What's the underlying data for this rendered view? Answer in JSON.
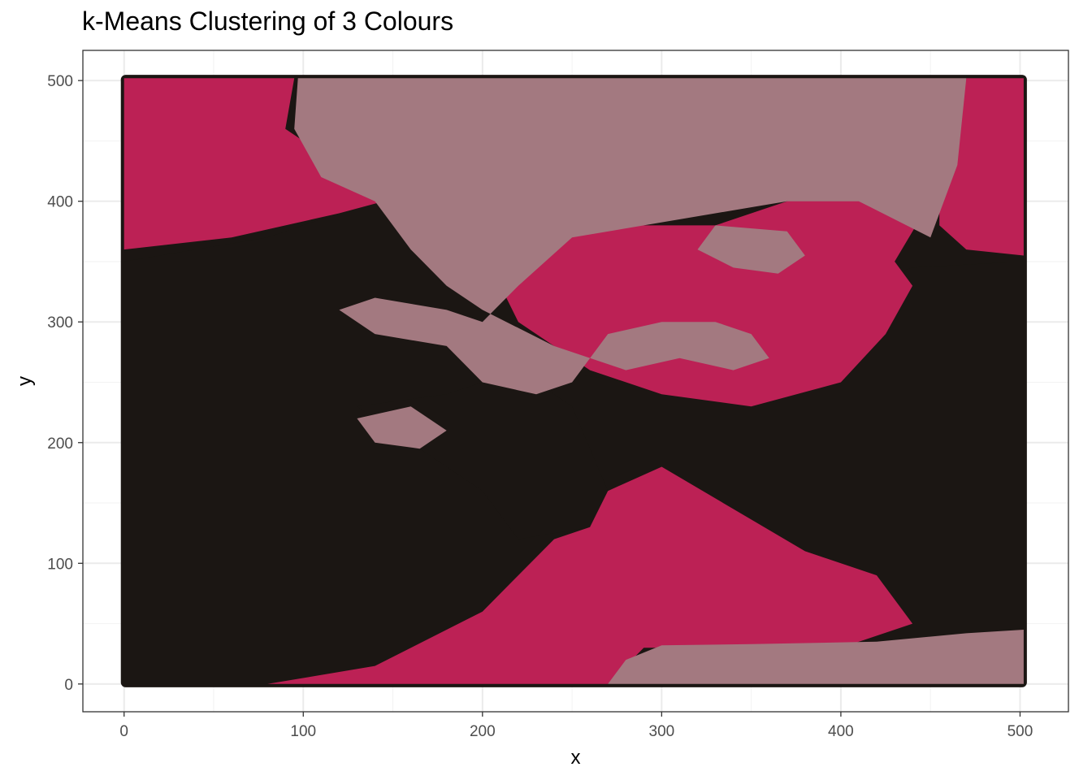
{
  "chart_data": {
    "type": "scatter",
    "title": "k-Means Clustering of 3 Colours",
    "xlabel": "x",
    "ylabel": "y",
    "xlim": [
      -23,
      527
    ],
    "ylim": [
      -23,
      525
    ],
    "x_ticks": [
      0,
      100,
      200,
      300,
      400,
      500
    ],
    "y_ticks": [
      0,
      100,
      200,
      300,
      400,
      500
    ],
    "grid": true,
    "legend": "none",
    "colors": {
      "cluster_dark": "#1b1613",
      "cluster_magenta": "#bc2155",
      "cluster_mauve": "#a37980"
    },
    "data_extent": {
      "x": [
        0,
        502
      ],
      "y": [
        0,
        502
      ]
    },
    "clusters": [
      {
        "color": "#1b1613",
        "regions": [
          [
            [
              0,
              0
            ],
            [
              80,
              0
            ],
            [
              140,
              15
            ],
            [
              260,
              55
            ],
            [
              300,
              40
            ],
            [
              420,
              30
            ],
            [
              502,
              40
            ],
            [
              502,
              350
            ],
            [
              440,
              345
            ],
            [
              390,
              320
            ],
            [
              360,
              280
            ],
            [
              320,
              260
            ],
            [
              280,
              250
            ],
            [
              240,
              260
            ],
            [
              220,
              300
            ],
            [
              200,
              360
            ],
            [
              190,
              410
            ],
            [
              160,
              410
            ],
            [
              120,
              390
            ],
            [
              80,
              370
            ],
            [
              40,
              360
            ],
            [
              0,
              350
            ]
          ],
          [
            [
              130,
              230
            ],
            [
              180,
              240
            ],
            [
              220,
              260
            ],
            [
              250,
              230
            ],
            [
              270,
              160
            ],
            [
              260,
              130
            ],
            [
              220,
              120
            ],
            [
              200,
              160
            ],
            [
              170,
              190
            ]
          ]
        ]
      },
      {
        "color": "#bc2155",
        "regions": [
          [
            [
              0,
              502
            ],
            [
              95,
              502
            ],
            [
              90,
              460
            ],
            [
              130,
              420
            ],
            [
              170,
              410
            ],
            [
              120,
              390
            ],
            [
              60,
              370
            ],
            [
              0,
              360
            ]
          ],
          [
            [
              470,
              502
            ],
            [
              502,
              502
            ],
            [
              502,
              355
            ],
            [
              470,
              360
            ],
            [
              455,
              380
            ],
            [
              455,
              420
            ]
          ],
          [
            [
              80,
              0
            ],
            [
              270,
              0
            ],
            [
              290,
              30
            ],
            [
              400,
              30
            ],
            [
              440,
              50
            ],
            [
              420,
              90
            ],
            [
              380,
              110
            ],
            [
              300,
              180
            ],
            [
              270,
              160
            ],
            [
              260,
              130
            ],
            [
              240,
              120
            ],
            [
              220,
              90
            ],
            [
              200,
              60
            ],
            [
              140,
              15
            ]
          ],
          [
            [
              230,
              400
            ],
            [
              290,
              380
            ],
            [
              330,
              380
            ],
            [
              370,
              400
            ],
            [
              410,
              420
            ],
            [
              450,
              400
            ],
            [
              430,
              350
            ],
            [
              440,
              330
            ],
            [
              425,
              290
            ],
            [
              400,
              250
            ],
            [
              350,
              230
            ],
            [
              300,
              240
            ],
            [
              260,
              260
            ],
            [
              220,
              300
            ],
            [
              200,
              360
            ]
          ]
        ]
      },
      {
        "color": "#a37980",
        "regions": [
          [
            [
              97,
              502
            ],
            [
              470,
              502
            ],
            [
              465,
              430
            ],
            [
              450,
              370
            ],
            [
              410,
              400
            ],
            [
              370,
              400
            ],
            [
              330,
              390
            ],
            [
              290,
              380
            ],
            [
              250,
              370
            ],
            [
              220,
              330
            ],
            [
              200,
              300
            ],
            [
              180,
              310
            ],
            [
              140,
              320
            ],
            [
              120,
              310
            ],
            [
              140,
              290
            ],
            [
              180,
              280
            ],
            [
              200,
              250
            ],
            [
              230,
              240
            ],
            [
              250,
              250
            ],
            [
              270,
              290
            ],
            [
              300,
              300
            ],
            [
              330,
              300
            ],
            [
              350,
              290
            ],
            [
              360,
              270
            ],
            [
              340,
              260
            ],
            [
              310,
              270
            ],
            [
              280,
              260
            ],
            [
              240,
              280
            ],
            [
              200,
              310
            ],
            [
              180,
              330
            ],
            [
              160,
              360
            ],
            [
              140,
              400
            ],
            [
              110,
              420
            ],
            [
              95,
              460
            ]
          ],
          [
            [
              270,
              0
            ],
            [
              502,
              0
            ],
            [
              502,
              45
            ],
            [
              470,
              42
            ],
            [
              420,
              35
            ],
            [
              350,
              33
            ],
            [
              300,
              32
            ],
            [
              280,
              20
            ]
          ],
          [
            [
              130,
              220
            ],
            [
              160,
              230
            ],
            [
              180,
              210
            ],
            [
              165,
              195
            ],
            [
              140,
              200
            ]
          ],
          [
            [
              330,
              380
            ],
            [
              370,
              375
            ],
            [
              380,
              355
            ],
            [
              365,
              340
            ],
            [
              340,
              345
            ],
            [
              320,
              360
            ]
          ]
        ]
      }
    ]
  }
}
